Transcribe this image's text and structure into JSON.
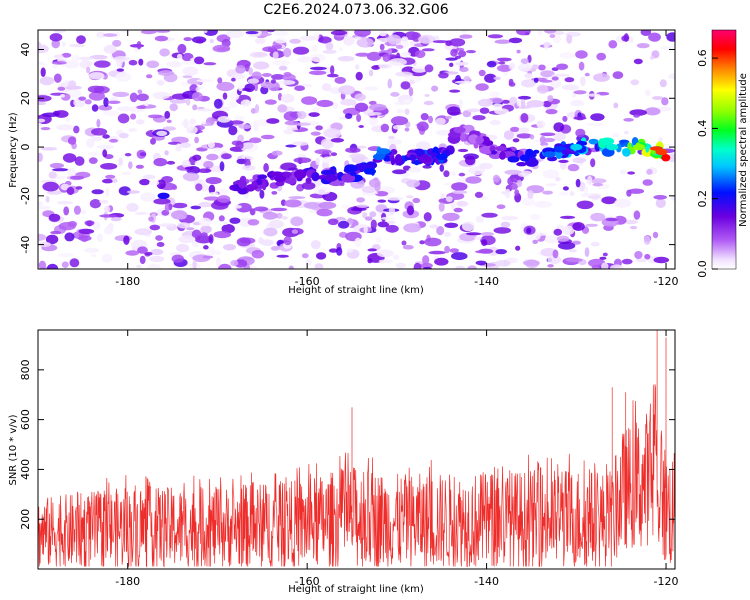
{
  "title": "C2E6.2024.073.06.32.G06",
  "chart_data": [
    {
      "type": "heatmap",
      "xlabel": "Height of straight line (km)",
      "ylabel": "Frequency (Hz)",
      "xlim": [
        -190,
        -119
      ],
      "ylim": [
        -50,
        48
      ],
      "xticks": [
        -180,
        -160,
        -140,
        -120
      ],
      "yticks": [
        -40,
        -20,
        0,
        20,
        40
      ],
      "colorbar": {
        "label": "Normalized spectral amplitude",
        "range": [
          0.0,
          0.68
        ],
        "ticks": [
          0.0,
          0.2,
          0.4,
          0.6
        ],
        "colormap": "rainbow (white-violet-blue-cyan-green-yellow-red-magenta)"
      },
      "ridge": {
        "description": "bright signal band near 0 Hz, strengthening with height",
        "points": [
          {
            "x": -176,
            "y": -20,
            "v": 0.2
          },
          {
            "x": -163,
            "y": -13,
            "v": 0.15
          },
          {
            "x": -153,
            "y": -10,
            "v": 0.22
          },
          {
            "x": -152,
            "y": -4,
            "v": 0.25
          },
          {
            "x": -145,
            "y": -4,
            "v": 0.22
          },
          {
            "x": -143,
            "y": 7,
            "v": 0.1
          },
          {
            "x": -137,
            "y": -5,
            "v": 0.2
          },
          {
            "x": -133,
            "y": -3,
            "v": 0.25
          },
          {
            "x": -130,
            "y": 0,
            "v": 0.3
          },
          {
            "x": -126,
            "y": 0,
            "v": 0.33
          },
          {
            "x": -123,
            "y": 0,
            "v": 0.45
          },
          {
            "x": -120.5,
            "y": -2,
            "v": 0.6
          }
        ]
      }
    },
    {
      "type": "line",
      "xlabel": "Height of straight line (km)",
      "ylabel": "SNR (10 * v/v)",
      "xlim": [
        -190,
        -119
      ],
      "ylim": [
        0,
        960
      ],
      "xticks": [
        -180,
        -160,
        -140,
        -120
      ],
      "yticks": [
        200,
        400,
        600,
        800
      ],
      "color": "#ee2d2b",
      "envelope": [
        {
          "x": -190,
          "low": 10,
          "high": 330
        },
        {
          "x": -180,
          "low": 10,
          "high": 380
        },
        {
          "x": -170,
          "low": 10,
          "high": 380
        },
        {
          "x": -160,
          "low": 10,
          "high": 420
        },
        {
          "x": -155,
          "low": 10,
          "high": 480
        },
        {
          "x": -150,
          "low": 10,
          "high": 440
        },
        {
          "x": -140,
          "low": 10,
          "high": 450
        },
        {
          "x": -130,
          "low": 10,
          "high": 470
        },
        {
          "x": -126,
          "low": 10,
          "high": 450
        },
        {
          "x": -125,
          "low": 80,
          "high": 640
        },
        {
          "x": -121,
          "low": 100,
          "high": 780
        },
        {
          "x": -120,
          "low": 10,
          "high": 560
        },
        {
          "x": -119,
          "low": 10,
          "high": 540
        }
      ],
      "peaks": [
        {
          "x": -155,
          "y": 650
        },
        {
          "x": -126,
          "y": 730
        },
        {
          "x": -124.5,
          "y": 710
        },
        {
          "x": -121,
          "y": 960
        },
        {
          "x": -120,
          "y": 930
        }
      ]
    }
  ]
}
